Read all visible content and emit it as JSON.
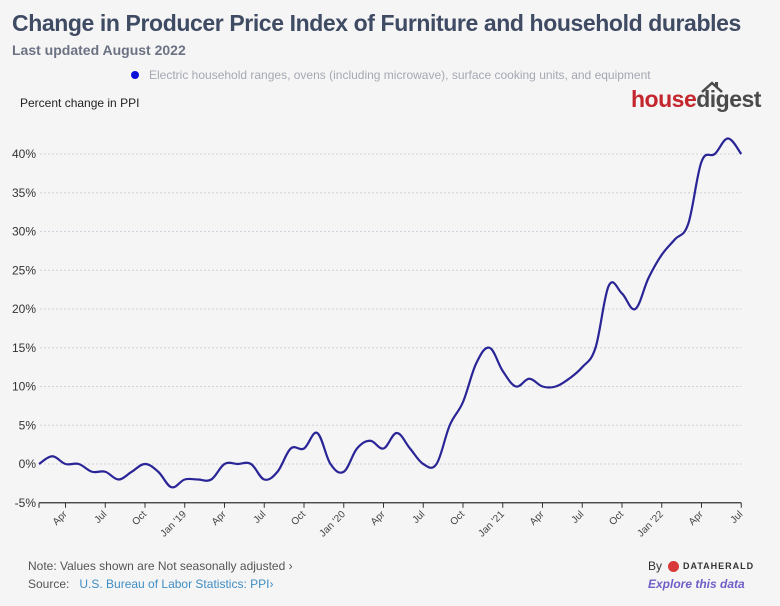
{
  "header": {
    "title": "Change in Producer Price Index of Furniture and household durables",
    "subtitle": "Last updated August 2022"
  },
  "logo": {
    "part1": "house",
    "part2": "digest"
  },
  "footer": {
    "note": "Note: Values shown are Not seasonally adjusted ›",
    "source_label": "Source:",
    "source_link": "U.S. Bureau of Labor Statistics: PPI›",
    "by": "By",
    "brand": "DATAHERALD",
    "explore": "Explore this data"
  },
  "colors": {
    "line": "#2a2596",
    "legend_dot": "#0a10d8",
    "grid": "#cfd2dc"
  },
  "chart_data": {
    "type": "line",
    "title": "Change in Producer Price Index of Furniture and household durables",
    "subtitle": "Last updated August 2022",
    "ylabel": "Percent change in PPI",
    "xlabel": "",
    "ylim": [
      -5,
      40
    ],
    "yticks": [
      "-5%",
      "0%",
      "5%",
      "10%",
      "15%",
      "20%",
      "25%",
      "30%",
      "35%",
      "40%"
    ],
    "ytick_values": [
      -5,
      0,
      5,
      10,
      15,
      20,
      25,
      30,
      35,
      40
    ],
    "grid": true,
    "legend_position": "top",
    "xtick_labels": [
      "Apr",
      "Jul",
      "Oct",
      "Jan '19",
      "Apr",
      "Jul",
      "Oct",
      "Jan '20",
      "Apr",
      "Jul",
      "Oct",
      "Jan '21",
      "Apr",
      "Jul",
      "Oct",
      "Jan '22",
      "Apr",
      "Jul"
    ],
    "xtick_month_index": [
      2,
      5,
      8,
      11,
      14,
      17,
      20,
      23,
      26,
      29,
      32,
      35,
      38,
      41,
      44,
      47,
      50,
      53
    ],
    "x_start": "Feb 2018",
    "x_end": "Jul 2022",
    "series": [
      {
        "name": "Electric household ranges, ovens (including microwave), surface cooking units, and equipment",
        "values": [
          0,
          1,
          0,
          0,
          -1,
          -1,
          -2,
          -1,
          0,
          -1,
          -3,
          -2,
          -2,
          -2,
          0,
          0,
          0,
          -2,
          -1,
          2,
          2,
          4,
          0,
          -1,
          2,
          3,
          2,
          4,
          2,
          0,
          0,
          5,
          8,
          13,
          15,
          12,
          10,
          11,
          10,
          10,
          11,
          12.5,
          15,
          23,
          22,
          20,
          24,
          27,
          29,
          31,
          39,
          40,
          42,
          40
        ]
      }
    ]
  }
}
